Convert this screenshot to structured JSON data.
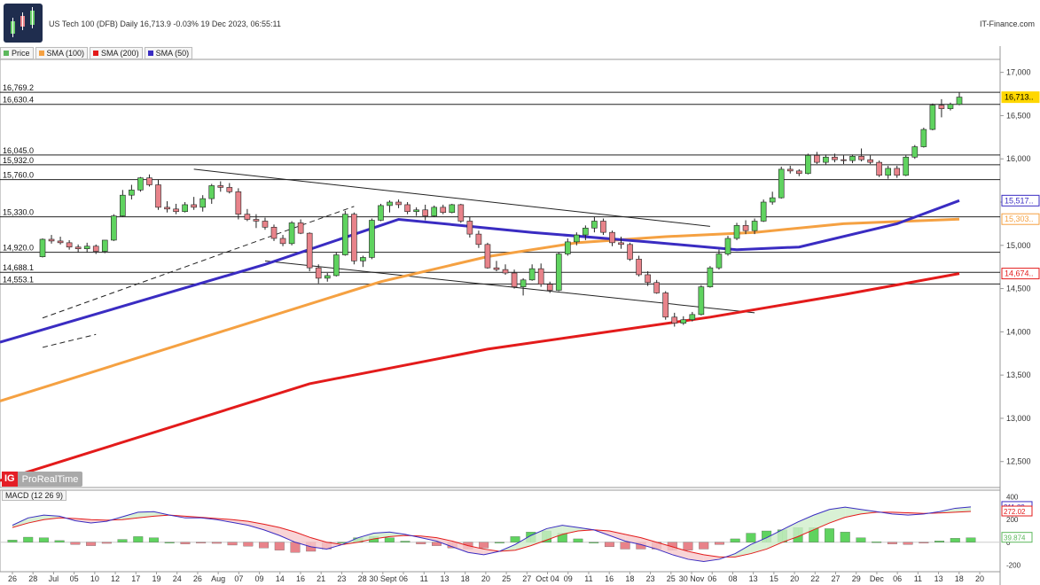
{
  "header": {
    "title": "US Tech 100 (DFB) Daily 16,713.9 -0.03% 19 Dec 2023, 06:55:11",
    "brand": "IT-Finance.com"
  },
  "legend": [
    {
      "label": "Price",
      "color": "#5cb85c"
    },
    {
      "label": "SMA (100)",
      "color": "#f5a142"
    },
    {
      "label": "SMA (200)",
      "color": "#e31b1b"
    },
    {
      "label": "SMA (50)",
      "color": "#3a2cc2"
    }
  ],
  "watermark": {
    "badge": "IG",
    "text": "ProRealTime"
  },
  "macd_label": "MACD (12 26 9)",
  "colors": {
    "up": "#5fd35f",
    "down": "#e8838a",
    "sma50": "#3a2cc2",
    "sma100": "#f5a142",
    "sma200": "#e31b1b",
    "last_label": "#ffd700"
  },
  "chart_data": {
    "type": "candlestick",
    "y_ticks": [
      17000,
      16500,
      16000,
      15500,
      15000,
      14500,
      14000,
      13500,
      13000,
      12500
    ],
    "y_range": [
      12200,
      17150
    ],
    "x_ticks": [
      "26",
      "28",
      "Jul",
      "05",
      "10",
      "12",
      "17",
      "19",
      "24",
      "26",
      "Aug",
      "07",
      "09",
      "14",
      "16",
      "21",
      "23",
      "28",
      "30 Sept",
      "06",
      "11",
      "13",
      "18",
      "20",
      "25",
      "27",
      "Oct 04",
      "09",
      "11",
      "16",
      "18",
      "23",
      "25",
      "30 Nov",
      "06",
      "08",
      "13",
      "15",
      "20",
      "22",
      "27",
      "29",
      "Dec",
      "06",
      "11",
      "13",
      "18",
      "20"
    ],
    "horizontal_levels": [
      16769.2,
      16630.4,
      16045.0,
      15932.0,
      15760.0,
      15330.0,
      14920.0,
      14688.1,
      14553.1
    ],
    "level_labels": [
      "16,769.2",
      "16,630.4",
      "16,045.0",
      "15,932.0",
      "15,760.0",
      "15,330.0",
      "14,920.0",
      "14,688.1",
      "14,553.1"
    ],
    "right_labels": [
      {
        "value": 16713,
        "text": "16,713..",
        "color": "#ffd700"
      },
      {
        "value": 15517,
        "text": "15,517..",
        "color": "#3a2cc2"
      },
      {
        "value": 15303,
        "text": "15,303..",
        "color": "#f5a142"
      },
      {
        "value": 14674,
        "text": "14,674..",
        "color": "#e31b1b"
      }
    ],
    "candles": [
      [
        14868,
        15080,
        14860,
        15070
      ],
      [
        15070,
        15120,
        15020,
        15050
      ],
      [
        15050,
        15100,
        15010,
        15030
      ],
      [
        15030,
        15060,
        14950,
        14980
      ],
      [
        14980,
        15010,
        14920,
        14960
      ],
      [
        14960,
        15030,
        14920,
        14990
      ],
      [
        14990,
        15010,
        14900,
        14930
      ],
      [
        14930,
        15060,
        14910,
        15060
      ],
      [
        15060,
        15360,
        15050,
        15340
      ],
      [
        15340,
        15640,
        15330,
        15580
      ],
      [
        15580,
        15700,
        15530,
        15640
      ],
      [
        15640,
        15790,
        15620,
        15780
      ],
      [
        15780,
        15820,
        15680,
        15700
      ],
      [
        15700,
        15760,
        15410,
        15440
      ],
      [
        15440,
        15510,
        15380,
        15420
      ],
      [
        15420,
        15480,
        15360,
        15390
      ],
      [
        15390,
        15500,
        15380,
        15470
      ],
      [
        15470,
        15560,
        15410,
        15440
      ],
      [
        15440,
        15580,
        15390,
        15540
      ],
      [
        15540,
        15710,
        15480,
        15690
      ],
      [
        15690,
        15740,
        15620,
        15670
      ],
      [
        15670,
        15720,
        15600,
        15620
      ],
      [
        15620,
        15660,
        15300,
        15360
      ],
      [
        15360,
        15420,
        15280,
        15300
      ],
      [
        15300,
        15360,
        15200,
        15280
      ],
      [
        15280,
        15320,
        15180,
        15210
      ],
      [
        15210,
        15240,
        15050,
        15080
      ],
      [
        15080,
        15120,
        14990,
        15020
      ],
      [
        15020,
        15280,
        15000,
        15260
      ],
      [
        15260,
        15300,
        15130,
        15140
      ],
      [
        15140,
        15150,
        14700,
        14740
      ],
      [
        14740,
        14780,
        14560,
        14620
      ],
      [
        14620,
        14680,
        14580,
        14650
      ],
      [
        14650,
        14920,
        14640,
        14890
      ],
      [
        14890,
        15400,
        14880,
        15360
      ],
      [
        15360,
        15380,
        14780,
        14820
      ],
      [
        14820,
        14880,
        14750,
        14860
      ],
      [
        14860,
        15310,
        14840,
        15290
      ],
      [
        15290,
        15480,
        15280,
        15460
      ],
      [
        15460,
        15520,
        15380,
        15500
      ],
      [
        15500,
        15530,
        15430,
        15470
      ],
      [
        15470,
        15500,
        15360,
        15390
      ],
      [
        15390,
        15440,
        15340,
        15410
      ],
      [
        15410,
        15470,
        15290,
        15340
      ],
      [
        15340,
        15460,
        15330,
        15440
      ],
      [
        15440,
        15470,
        15360,
        15380
      ],
      [
        15380,
        15480,
        15370,
        15470
      ],
      [
        15470,
        15480,
        15260,
        15280
      ],
      [
        15280,
        15330,
        15090,
        15130
      ],
      [
        15130,
        15170,
        14970,
        15010
      ],
      [
        15010,
        15030,
        14730,
        14740
      ],
      [
        14740,
        14820,
        14700,
        14720
      ],
      [
        14720,
        14780,
        14660,
        14680
      ],
      [
        14680,
        14720,
        14500,
        14520
      ],
      [
        14520,
        14620,
        14420,
        14600
      ],
      [
        14600,
        14780,
        14590,
        14730
      ],
      [
        14730,
        14790,
        14520,
        14550
      ],
      [
        14550,
        14580,
        14450,
        14480
      ],
      [
        14480,
        14920,
        14470,
        14900
      ],
      [
        14900,
        15080,
        14880,
        15040
      ],
      [
        15040,
        15150,
        15000,
        15120
      ],
      [
        15120,
        15230,
        15060,
        15200
      ],
      [
        15200,
        15330,
        15150,
        15280
      ],
      [
        15280,
        15310,
        15120,
        15150
      ],
      [
        15150,
        15170,
        14990,
        15030
      ],
      [
        15030,
        15100,
        14960,
        15010
      ],
      [
        15010,
        15030,
        14820,
        14840
      ],
      [
        14840,
        14880,
        14640,
        14660
      ],
      [
        14660,
        14700,
        14530,
        14570
      ],
      [
        14570,
        14600,
        14440,
        14450
      ],
      [
        14450,
        14470,
        14140,
        14170
      ],
      [
        14170,
        14220,
        14060,
        14100
      ],
      [
        14100,
        14180,
        14080,
        14140
      ],
      [
        14140,
        14230,
        14120,
        14200
      ],
      [
        14200,
        14540,
        14190,
        14520
      ],
      [
        14520,
        14760,
        14510,
        14740
      ],
      [
        14740,
        14950,
        14720,
        14900
      ],
      [
        14900,
        15110,
        14880,
        15080
      ],
      [
        15080,
        15260,
        15060,
        15230
      ],
      [
        15230,
        15290,
        15130,
        15170
      ],
      [
        15170,
        15310,
        15130,
        15280
      ],
      [
        15280,
        15530,
        15270,
        15500
      ],
      [
        15500,
        15620,
        15470,
        15550
      ],
      [
        15550,
        15910,
        15540,
        15880
      ],
      [
        15880,
        15920,
        15830,
        15860
      ],
      [
        15860,
        15880,
        15800,
        15830
      ],
      [
        15830,
        16060,
        15820,
        16040
      ],
      [
        16040,
        16080,
        15940,
        15960
      ],
      [
        15960,
        16050,
        15930,
        16020
      ],
      [
        16020,
        16060,
        15960,
        15990
      ],
      [
        15990,
        16040,
        15940,
        15980
      ],
      [
        15980,
        16050,
        15950,
        16030
      ],
      [
        16030,
        16120,
        15970,
        15990
      ],
      [
        15990,
        16040,
        15940,
        15960
      ],
      [
        15960,
        15980,
        15790,
        15810
      ],
      [
        15810,
        15920,
        15770,
        15890
      ],
      [
        15890,
        15920,
        15780,
        15810
      ],
      [
        15810,
        16040,
        15800,
        16020
      ],
      [
        16020,
        16160,
        16000,
        16140
      ],
      [
        16140,
        16360,
        16130,
        16340
      ],
      [
        16340,
        16640,
        16330,
        16620
      ],
      [
        16620,
        16690,
        16480,
        16580
      ],
      [
        16580,
        16650,
        16560,
        16630
      ],
      [
        16630,
        16770,
        16620,
        16714
      ]
    ],
    "sma50": [
      [
        0,
        13880
      ],
      [
        25,
        14780
      ],
      [
        40,
        15300
      ],
      [
        55,
        15150
      ],
      [
        68,
        15040
      ],
      [
        78,
        14950
      ],
      [
        85,
        14980
      ],
      [
        96,
        15250
      ],
      [
        103,
        15517
      ]
    ],
    "sma100": [
      [
        0,
        13200
      ],
      [
        20,
        14000
      ],
      [
        38,
        14580
      ],
      [
        50,
        14870
      ],
      [
        60,
        15030
      ],
      [
        70,
        15100
      ],
      [
        80,
        15150
      ],
      [
        90,
        15250
      ],
      [
        103,
        15303
      ]
    ],
    "sma200": [
      [
        0,
        12280
      ],
      [
        30,
        13400
      ],
      [
        50,
        13800
      ],
      [
        75,
        14170
      ],
      [
        90,
        14430
      ],
      [
        103,
        14674
      ]
    ],
    "trendlines": [
      {
        "from": [
          17,
          15880
        ],
        "to": [
          75,
          15220
        ],
        "dashed": false
      },
      {
        "from": [
          25,
          14820
        ],
        "to": [
          80,
          14220
        ],
        "dashed": false
      },
      {
        "from": [
          0,
          14160
        ],
        "to": [
          35,
          15450
        ],
        "dashed": true
      },
      {
        "from": [
          0,
          13820
        ],
        "to": [
          6,
          13970
        ],
        "dashed": true
      }
    ],
    "macd": {
      "y_ticks": [
        400,
        200,
        0,
        -200
      ],
      "y_range": [
        -260,
        460
      ],
      "right_labels": [
        {
          "value": 311.89,
          "text": "311.89",
          "color": "#3a2cc2"
        },
        {
          "value": 272.02,
          "text": "272.02",
          "color": "#e31b1b"
        },
        {
          "value": 39.874,
          "text": "39.874",
          "color": "#5cb85c"
        }
      ],
      "line": [
        150,
        215,
        240,
        230,
        190,
        170,
        185,
        225,
        265,
        270,
        240,
        215,
        215,
        200,
        175,
        150,
        110,
        60,
        0,
        -40,
        -60,
        -20,
        40,
        80,
        90,
        70,
        40,
        10,
        -40,
        -90,
        -110,
        -80,
        -20,
        60,
        120,
        150,
        130,
        110,
        60,
        10,
        -20,
        -60,
        -110,
        -150,
        -170,
        -150,
        -100,
        -20,
        40,
        110,
        180,
        240,
        290,
        310,
        290,
        270,
        250,
        240,
        250,
        270,
        300,
        312
      ],
      "signal": [
        130,
        170,
        200,
        215,
        210,
        200,
        195,
        200,
        215,
        230,
        240,
        230,
        220,
        210,
        200,
        185,
        160,
        130,
        90,
        40,
        0,
        -20,
        0,
        30,
        50,
        60,
        55,
        40,
        10,
        -30,
        -60,
        -80,
        -70,
        -30,
        20,
        70,
        100,
        110,
        100,
        70,
        40,
        0,
        -40,
        -80,
        -110,
        -130,
        -130,
        -100,
        -60,
        0,
        50,
        110,
        170,
        220,
        250,
        265,
        265,
        260,
        255,
        258,
        265,
        272
      ],
      "histogram": [
        20,
        45,
        40,
        15,
        -20,
        -30,
        -10,
        25,
        50,
        40,
        0,
        -15,
        -5,
        -10,
        -25,
        -35,
        -50,
        -70,
        -90,
        -80,
        -60,
        0,
        40,
        50,
        40,
        10,
        -15,
        -30,
        -50,
        -60,
        -50,
        0,
        50,
        90,
        100,
        80,
        30,
        0,
        -40,
        -60,
        -60,
        -60,
        -70,
        -70,
        -60,
        -20,
        30,
        80,
        100,
        110,
        130,
        130,
        120,
        90,
        40,
        5,
        -15,
        -20,
        -5,
        12,
        35,
        40
      ]
    }
  }
}
